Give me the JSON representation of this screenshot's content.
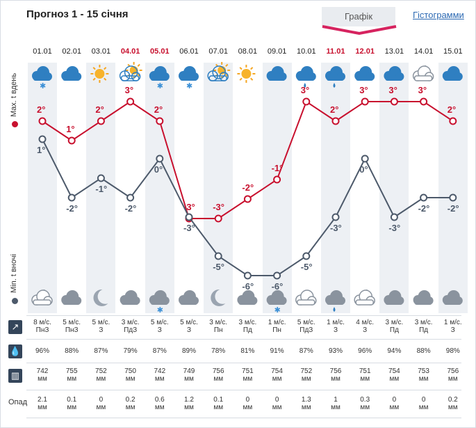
{
  "title": "Прогноз 1 - 15 січня",
  "tabs": {
    "graph": "Графік",
    "histogram": "Гістограмми"
  },
  "side_labels": {
    "max": "Max. t вдень",
    "min": "Min. t вночі"
  },
  "row_labels": {
    "precip": "Опад"
  },
  "colors": {
    "max": "#c8102e",
    "min": "#4d5a6b",
    "accent": "#d6235f"
  },
  "days": [
    {
      "date": "01.01",
      "holiday": false,
      "day_icon": "cloud-snow-icon",
      "night_icon": "moon-cloud-icon",
      "wind": "8 м/с.",
      "dir": "ПнЗ",
      "hum": "96%",
      "press": "742",
      "unit": "мм",
      "precip": "2.1"
    },
    {
      "date": "02.01",
      "holiday": false,
      "day_icon": "cloud-icon",
      "night_icon": "cloud-icon",
      "wind": "5 м/с.",
      "dir": "ПнЗ",
      "hum": "88%",
      "press": "755",
      "unit": "мм",
      "precip": "0.1"
    },
    {
      "date": "03.01",
      "holiday": false,
      "day_icon": "sun-icon",
      "night_icon": "moon-icon",
      "wind": "5 м/с.",
      "dir": "З",
      "hum": "87%",
      "press": "752",
      "unit": "мм",
      "precip": "0"
    },
    {
      "date": "04.01",
      "holiday": true,
      "day_icon": "sun-cloud-icon",
      "night_icon": "cloud-icon",
      "wind": "3 м/с.",
      "dir": "ПдЗ",
      "hum": "79%",
      "press": "750",
      "unit": "мм",
      "precip": "0.2"
    },
    {
      "date": "05.01",
      "holiday": true,
      "day_icon": "cloud-snow-icon",
      "night_icon": "cloud-snow-icon",
      "wind": "5 м/с.",
      "dir": "З",
      "hum": "87%",
      "press": "742",
      "unit": "мм",
      "precip": "0.6"
    },
    {
      "date": "06.01",
      "holiday": false,
      "day_icon": "cloud-snow-icon",
      "night_icon": "cloud-icon",
      "wind": "5 м/с.",
      "dir": "З",
      "hum": "89%",
      "press": "749",
      "unit": "мм",
      "precip": "1.2"
    },
    {
      "date": "07.01",
      "holiday": false,
      "day_icon": "sun-cloud-icon",
      "night_icon": "moon-icon",
      "wind": "3 м/с.",
      "dir": "Пн",
      "hum": "78%",
      "press": "756",
      "unit": "мм",
      "precip": "0.1"
    },
    {
      "date": "08.01",
      "holiday": false,
      "day_icon": "sun-icon",
      "night_icon": "cloud-icon",
      "wind": "3 м/с.",
      "dir": "Пд",
      "hum": "81%",
      "press": "751",
      "unit": "мм",
      "precip": "0"
    },
    {
      "date": "09.01",
      "holiday": false,
      "day_icon": "cloud-icon",
      "night_icon": "cloud-snow-icon",
      "wind": "1 м/с.",
      "dir": "Пн",
      "hum": "91%",
      "press": "754",
      "unit": "мм",
      "precip": "0"
    },
    {
      "date": "10.01",
      "holiday": false,
      "day_icon": "cloud-rain-icon",
      "night_icon": "cloud-outline-icon",
      "wind": "5 м/с.",
      "dir": "ПдЗ",
      "hum": "87%",
      "press": "752",
      "unit": "мм",
      "precip": "1.3"
    },
    {
      "date": "11.01",
      "holiday": true,
      "day_icon": "cloud-rain-icon",
      "night_icon": "cloud-rain-icon",
      "wind": "1 м/с.",
      "dir": "З",
      "hum": "93%",
      "press": "756",
      "unit": "мм",
      "precip": "1"
    },
    {
      "date": "12.01",
      "holiday": true,
      "day_icon": "cloud-icon",
      "night_icon": "moon-cloud-icon",
      "wind": "4 м/с.",
      "dir": "З",
      "hum": "96%",
      "press": "751",
      "unit": "мм",
      "precip": "0.3"
    },
    {
      "date": "13.01",
      "holiday": false,
      "day_icon": "cloud-icon",
      "night_icon": "cloud-icon",
      "wind": "3 м/с.",
      "dir": "Пд",
      "hum": "94%",
      "press": "754",
      "unit": "мм",
      "precip": "0"
    },
    {
      "date": "14.01",
      "holiday": false,
      "day_icon": "moon-cloud-icon",
      "night_icon": "cloud-icon",
      "wind": "3 м/с.",
      "dir": "Пд",
      "hum": "88%",
      "press": "753",
      "unit": "мм",
      "precip": "0"
    },
    {
      "date": "15.01",
      "holiday": false,
      "day_icon": "cloud-icon",
      "night_icon": "cloud-icon",
      "wind": "1 м/с.",
      "dir": "З",
      "hum": "98%",
      "press": "756",
      "unit": "мм",
      "precip": "0.2"
    }
  ],
  "chart_data": {
    "type": "line",
    "categories": [
      "01.01",
      "02.01",
      "03.01",
      "04.01",
      "05.01",
      "06.01",
      "07.01",
      "08.01",
      "09.01",
      "10.01",
      "11.01",
      "12.01",
      "13.01",
      "14.01",
      "15.01"
    ],
    "series": [
      {
        "name": "Max. t вдень",
        "values": [
          2,
          1,
          2,
          3,
          2,
          -3,
          -3,
          -2,
          -1,
          3,
          2,
          3,
          3,
          3,
          2
        ],
        "labels": [
          "2°",
          "1°",
          "2°",
          "3°",
          "2°",
          "-3°",
          "-3°",
          "-2°",
          "-1°",
          "3°",
          "2°",
          "3°",
          "3°",
          "3°",
          "2°"
        ]
      },
      {
        "name": "Min. t вночі",
        "values": [
          1,
          -2,
          -1,
          -2,
          0,
          -3,
          -5,
          -6,
          -6,
          -5,
          -3,
          0,
          -3,
          -2,
          -2
        ],
        "labels": [
          "1°",
          "-2°",
          "-1°",
          "-2°",
          "0°",
          "-3°",
          "-5°",
          "-6°",
          "-6°",
          "-5°",
          "-3°",
          "0°",
          "-3°",
          "-2°",
          "-2°"
        ]
      }
    ],
    "title": "",
    "xlabel": "",
    "ylabel": "",
    "grid": false
  }
}
